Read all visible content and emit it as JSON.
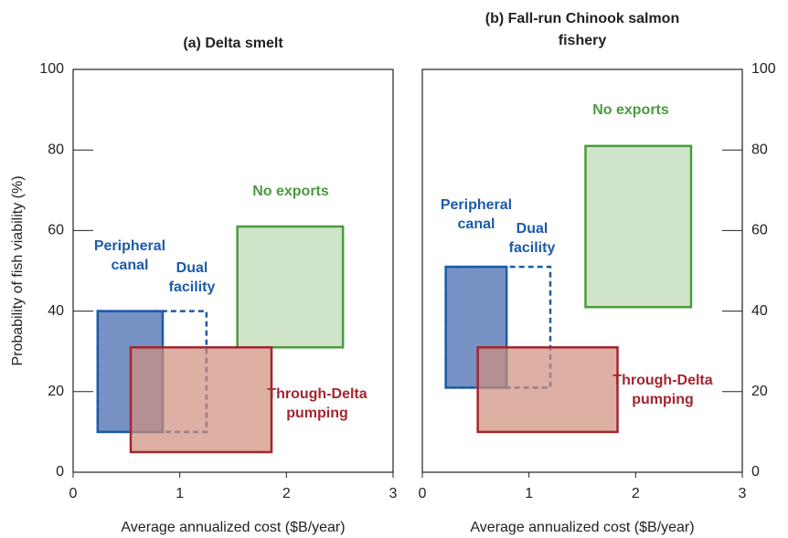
{
  "chart_data": [
    {
      "type": "range-box",
      "title": "(a) Delta smelt",
      "xlabel": "Average annualized cost ($B/year)",
      "ylabel": "Probability of fish viability (%)",
      "xlim": [
        0,
        3
      ],
      "xticks": [
        0,
        1,
        2,
        3
      ],
      "ylim": [
        0,
        100
      ],
      "yticks": [
        0,
        20,
        40,
        60,
        80,
        100
      ],
      "yaxis_side": "left",
      "series": [
        {
          "name": "Peripheral canal",
          "color": "#1d5ba6",
          "fill": "#3f62ad",
          "dashed": false,
          "x": [
            0.23,
            0.84
          ],
          "y": [
            10,
            40
          ]
        },
        {
          "name": "Dual facility",
          "color": "#1d5ba6",
          "fill": "none",
          "dashed": true,
          "x": [
            0.23,
            1.25
          ],
          "y": [
            10,
            40
          ]
        },
        {
          "name": "No exports",
          "color": "#4a9a3f",
          "fill": "#bcd9b4",
          "dashed": false,
          "x": [
            1.54,
            2.53
          ],
          "y": [
            31,
            61
          ]
        },
        {
          "name": "Through-Delta pumping",
          "color": "#a3262e",
          "fill": "#cf8f7c",
          "dashed": false,
          "x": [
            0.54,
            1.86
          ],
          "y": [
            5,
            31
          ]
        }
      ]
    },
    {
      "type": "range-box",
      "title": "(b) Fall-run Chinook salmon fishery",
      "xlabel": "Average annualized cost ($B/year)",
      "xlim": [
        0,
        3
      ],
      "xticks": [
        0,
        1,
        2,
        3
      ],
      "ylim": [
        0,
        100
      ],
      "yticks": [
        0,
        20,
        40,
        60,
        80,
        100
      ],
      "yaxis_side": "right",
      "series": [
        {
          "name": "Peripheral canal",
          "color": "#1d5ba6",
          "fill": "#3f62ad",
          "dashed": false,
          "x": [
            0.22,
            0.79
          ],
          "y": [
            21,
            51
          ]
        },
        {
          "name": "Dual facility",
          "color": "#1d5ba6",
          "fill": "none",
          "dashed": true,
          "x": [
            0.22,
            1.2
          ],
          "y": [
            21,
            51
          ]
        },
        {
          "name": "No exports",
          "color": "#4a9a3f",
          "fill": "#bcd9b4",
          "dashed": false,
          "x": [
            1.53,
            2.52
          ],
          "y": [
            41,
            81
          ]
        },
        {
          "name": "Through-Delta pumping",
          "color": "#a3262e",
          "fill": "#cf8f7c",
          "dashed": false,
          "x": [
            0.52,
            1.83
          ],
          "y": [
            10,
            31
          ]
        }
      ]
    }
  ]
}
